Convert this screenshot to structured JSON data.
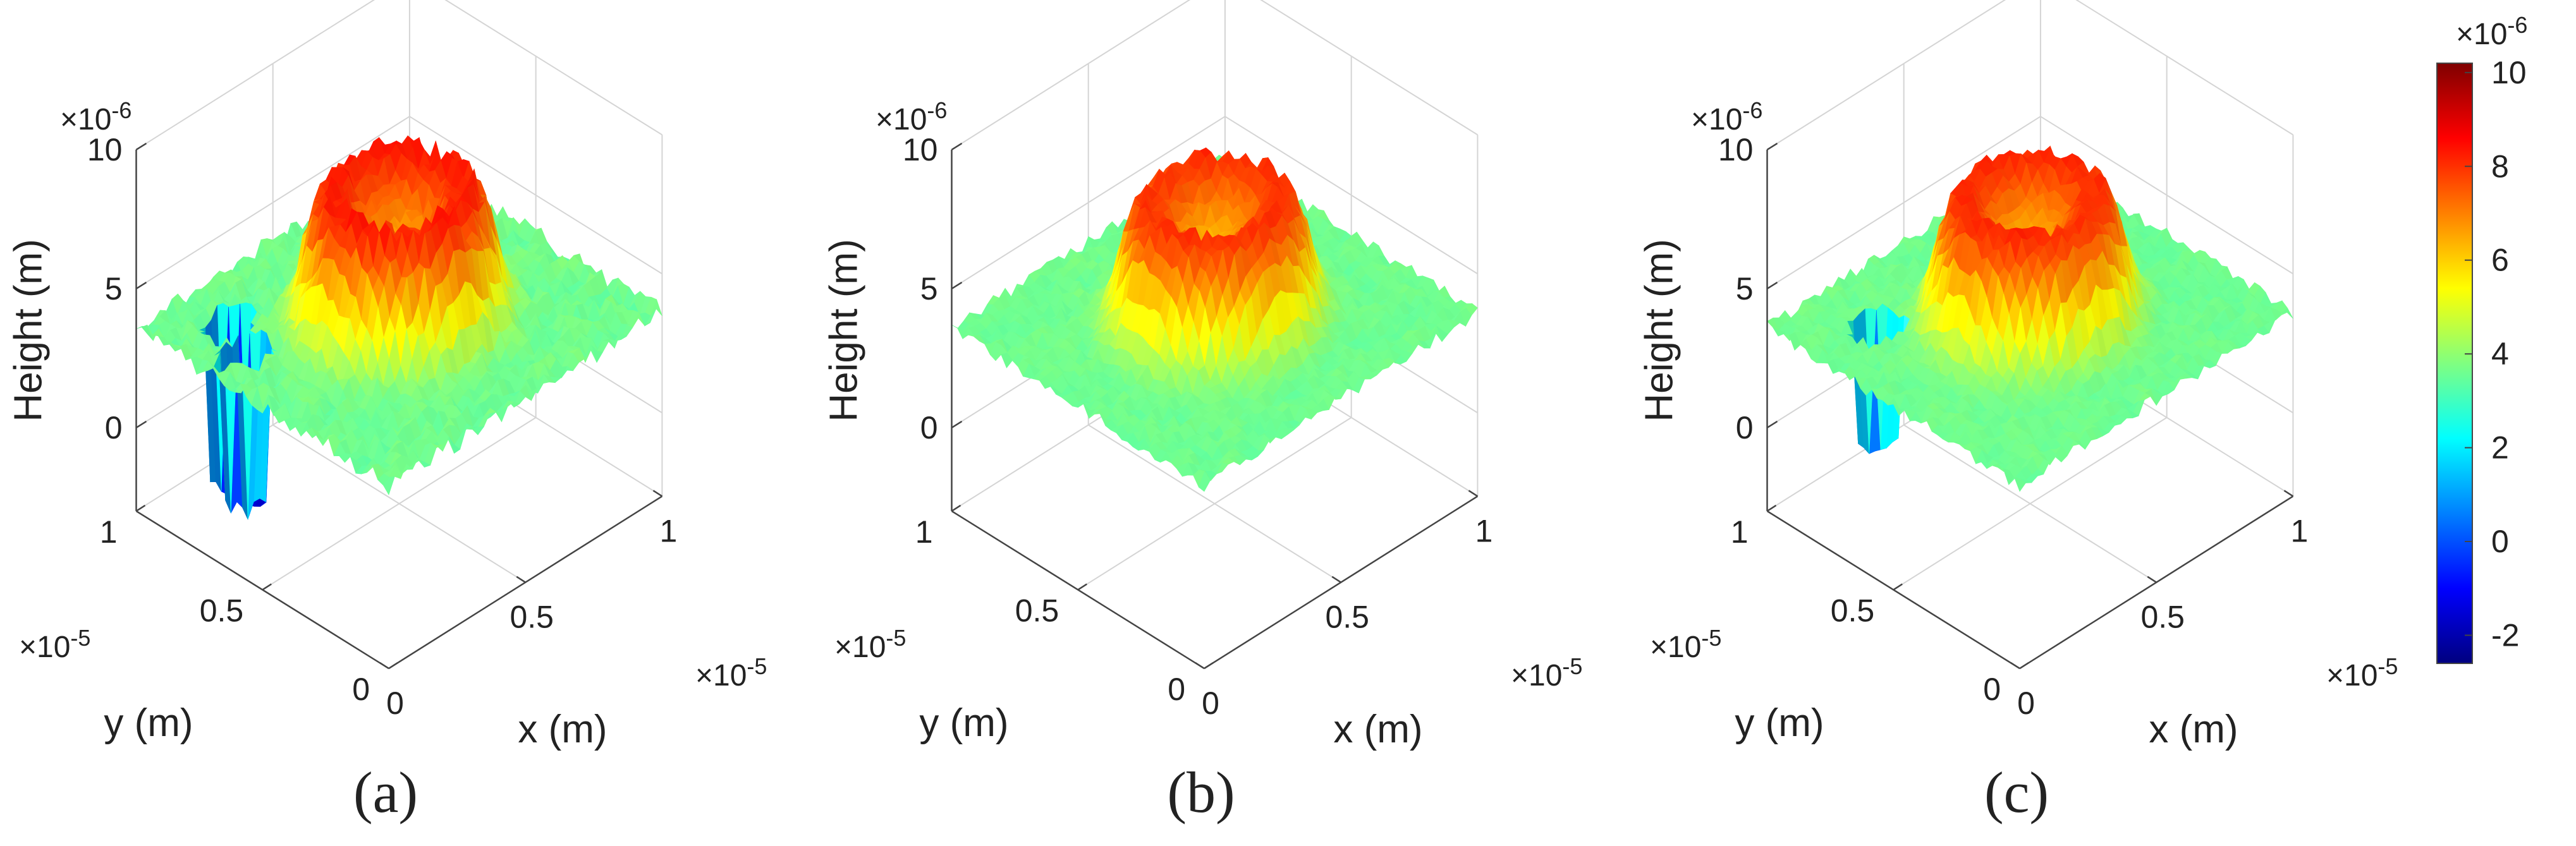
{
  "figure": {
    "panel_labels": [
      "(a)",
      "(b)",
      "(c)"
    ]
  },
  "colorbar": {
    "exponent": "×10",
    "exponent_power": "-6",
    "ticks": [
      "10",
      "8",
      "6",
      "4",
      "2",
      "0",
      "-2"
    ],
    "range": [
      -2.6,
      10.2
    ],
    "colormap": [
      "#00007f",
      "#0000ff",
      "#0080ff",
      "#00ffff",
      "#80ff80",
      "#ffff00",
      "#ff8000",
      "#ff0000",
      "#7f0000"
    ]
  },
  "chart_data": [
    {
      "type": "surface",
      "panel": "(a)",
      "title": "",
      "zlabel": "Height (m)",
      "xlabel": "x (m)",
      "ylabel": "y (m)",
      "z_exponent": "×10",
      "z_exponent_power": "-6",
      "x_exponent": "×10",
      "x_exponent_power": "-5",
      "y_exponent": "×10",
      "y_exponent_power": "-5",
      "zticks": [
        "10",
        "5",
        "0"
      ],
      "xticks": [
        "0",
        "0.5",
        "1"
      ],
      "yticks": [
        "0",
        "0.5",
        "1"
      ],
      "zlim": [
        -3,
        10
      ],
      "xlim": [
        0,
        1
      ],
      "ylim": [
        0,
        1
      ],
      "features": {
        "base_height_um": 3.6,
        "ring_peak_height_um": 7.6,
        "ring_radius_frac": 0.25,
        "central_dip_um": 6.2,
        "noise_um": 0.45,
        "spikes": [
          {
            "x": 0.18,
            "y": 0.82,
            "depth_um": -2.4
          },
          {
            "x": 0.12,
            "y": 0.7,
            "depth_um": -2.0
          }
        ]
      }
    },
    {
      "type": "surface",
      "panel": "(b)",
      "title": "",
      "zlabel": "Height (m)",
      "xlabel": "x (m)",
      "ylabel": "y (m)",
      "z_exponent": "×10",
      "z_exponent_power": "-6",
      "x_exponent": "×10",
      "x_exponent_power": "-5",
      "y_exponent": "×10",
      "y_exponent_power": "-5",
      "zticks": [
        "10",
        "5",
        "0"
      ],
      "xticks": [
        "0",
        "0.5",
        "1"
      ],
      "yticks": [
        "0",
        "0.5",
        "1"
      ],
      "zlim": [
        -3,
        10
      ],
      "xlim": [
        0,
        1
      ],
      "ylim": [
        0,
        1
      ],
      "features": {
        "base_height_um": 3.6,
        "ring_peak_height_um": 7.3,
        "ring_radius_frac": 0.25,
        "central_dip_um": 6.0,
        "noise_um": 0.3,
        "spikes": []
      }
    },
    {
      "type": "surface",
      "panel": "(c)",
      "title": "",
      "zlabel": "Height (m)",
      "xlabel": "x (m)",
      "ylabel": "y (m)",
      "z_exponent": "×10",
      "z_exponent_power": "-6",
      "x_exponent": "×10",
      "x_exponent_power": "-5",
      "y_exponent": "×10",
      "y_exponent_power": "-5",
      "zticks": [
        "10",
        "5",
        "0"
      ],
      "xticks": [
        "0",
        "0.5",
        "1"
      ],
      "yticks": [
        "0",
        "0.5",
        "1"
      ],
      "zlim": [
        -3,
        10
      ],
      "xlim": [
        0,
        1
      ],
      "ylim": [
        0,
        1
      ],
      "features": {
        "base_height_um": 3.6,
        "ring_peak_height_um": 7.4,
        "ring_radius_frac": 0.25,
        "central_dip_um": 6.0,
        "noise_um": 0.3,
        "spikes": [
          {
            "x": 0.2,
            "y": 0.78,
            "depth_um": -0.6
          }
        ]
      }
    }
  ]
}
